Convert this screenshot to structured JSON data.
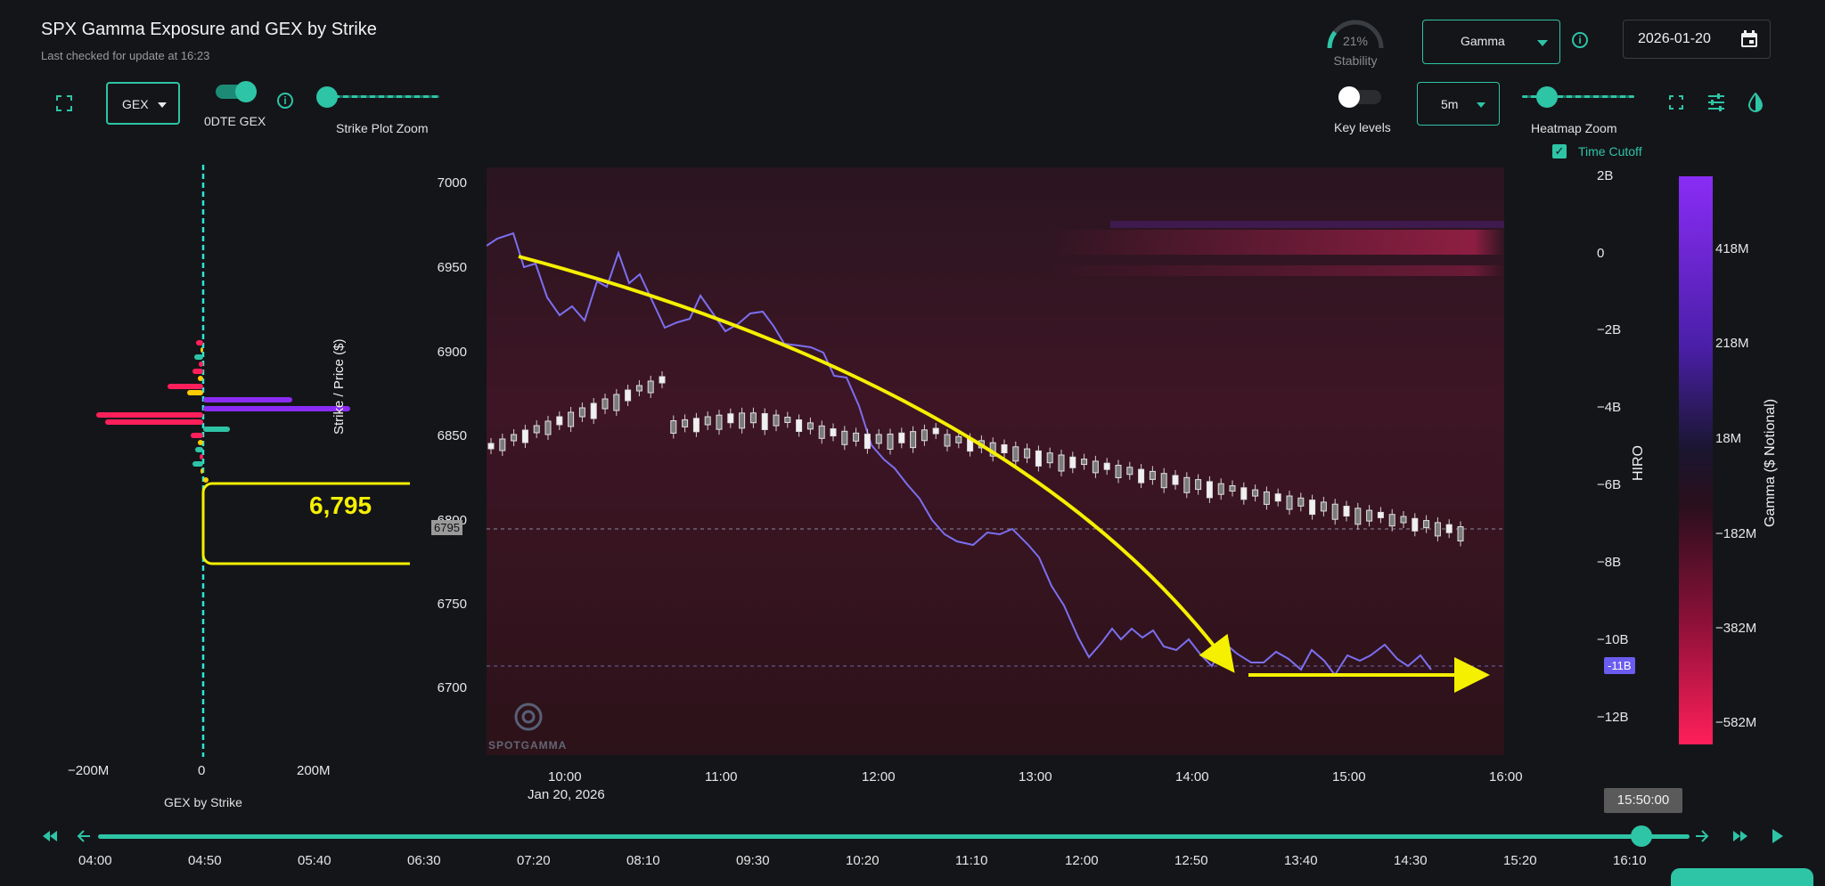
{
  "header": {
    "title": "SPX Gamma Exposure and GEX by Strike",
    "last_checked": "Last checked for update at 16:23",
    "stability_pct": "21%",
    "stability_label": "Stability",
    "stability_value": 0.21,
    "measure_select": "Gamma",
    "date": "2026-01-20"
  },
  "controls": {
    "gex_select": "GEX",
    "zero_dte_label": "0DTE GEX",
    "zero_dte_on": true,
    "strike_zoom_label": "Strike Plot Zoom",
    "key_levels_label": "Key levels",
    "key_levels_on": false,
    "interval_select": "5m",
    "heatmap_zoom_label": "Heatmap Zoom",
    "time_cutoff_label": "Time Cutoff",
    "time_cutoff_checked": true
  },
  "gex_panel": {
    "axis_label": "GEX by Strike",
    "x_ticks": [
      "−200M",
      "0",
      "200M"
    ],
    "callout": "6,795"
  },
  "main_chart": {
    "y_label": "Strike / Price ($)",
    "y_ticks": [
      "7000",
      "6950",
      "6900",
      "6850",
      "6800",
      "6750",
      "6700"
    ],
    "price_marker": "6795",
    "x_ticks": [
      "10:00",
      "11:00",
      "12:00",
      "13:00",
      "14:00",
      "15:00",
      "16:00"
    ],
    "x_date": "Jan 20, 2026",
    "hiro_label": "HIRO",
    "hiro_ticks": [
      "2B",
      "0",
      "−2B",
      "−4B",
      "−6B",
      "−8B",
      "−10B",
      "−12B"
    ],
    "hiro_marker": "-11B",
    "watermark": "SPOTGAMMA"
  },
  "colorbar": {
    "label": "Gamma ($ Notional)",
    "ticks": [
      "418M",
      "218M",
      "18M",
      "−182M",
      "−382M",
      "−582M"
    ]
  },
  "timeline": {
    "current": "15:50:00",
    "ticks": [
      "04:00",
      "04:50",
      "05:40",
      "06:30",
      "07:20",
      "08:10",
      "09:30",
      "10:20",
      "11:10",
      "12:00",
      "12:50",
      "13:40",
      "14:30",
      "15:20",
      "16:10"
    ],
    "progress": 0.97
  },
  "colors": {
    "accent": "#2ec4a6",
    "hiro_line": "#7b6ff0",
    "annotation": "#f5f000",
    "gex_negative": "#ff1f5a",
    "gex_positive": "#8b2cf5"
  }
}
